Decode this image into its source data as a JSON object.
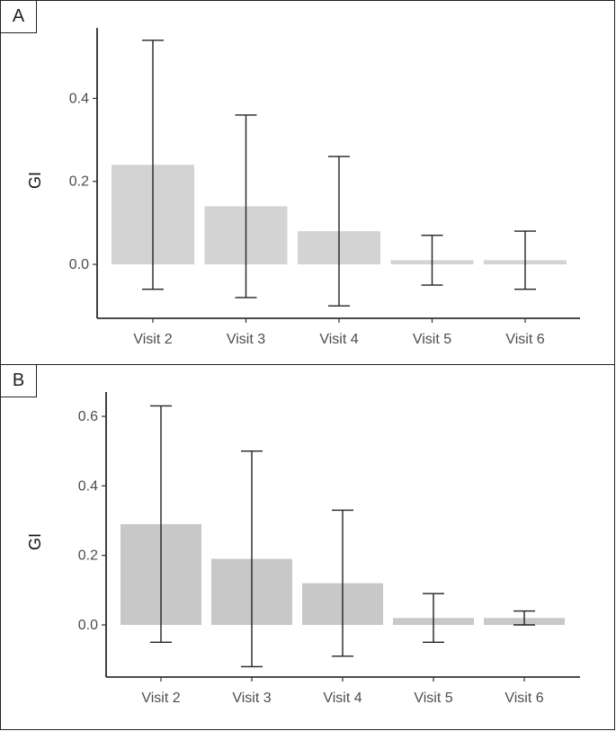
{
  "chart_data": [
    {
      "panel": "A",
      "type": "bar",
      "title": "",
      "xlabel": "",
      "ylabel": "GI",
      "categories": [
        "Visit 2",
        "Visit 3",
        "Visit 4",
        "Visit 5",
        "Visit 6"
      ],
      "values": [
        0.24,
        0.14,
        0.08,
        0.01,
        0.01
      ],
      "error_low": [
        -0.06,
        -0.08,
        -0.1,
        -0.05,
        -0.06
      ],
      "error_high": [
        0.54,
        0.36,
        0.26,
        0.07,
        0.08
      ],
      "ylim": [
        -0.13,
        0.57
      ],
      "yticks": [
        0.0,
        0.2,
        0.4
      ],
      "ytick_labels": [
        "0.0",
        "0.2",
        "0.4"
      ],
      "bar_color": "#d3d3d3",
      "grid": false
    },
    {
      "panel": "B",
      "type": "bar",
      "title": "",
      "xlabel": "",
      "ylabel": "GI",
      "categories": [
        "Visit 2",
        "Visit 3",
        "Visit 4",
        "Visit 5",
        "Visit 6"
      ],
      "values": [
        0.29,
        0.19,
        0.12,
        0.02,
        0.02
      ],
      "error_low": [
        -0.05,
        -0.12,
        -0.09,
        -0.05,
        0.0
      ],
      "error_high": [
        0.63,
        0.5,
        0.33,
        0.09,
        0.04
      ],
      "ylim": [
        -0.15,
        0.67
      ],
      "yticks": [
        0.0,
        0.2,
        0.4,
        0.6
      ],
      "ytick_labels": [
        "0.0",
        "0.2",
        "0.4",
        "0.6"
      ],
      "bar_color": "#c8c8c8",
      "grid": false
    }
  ]
}
